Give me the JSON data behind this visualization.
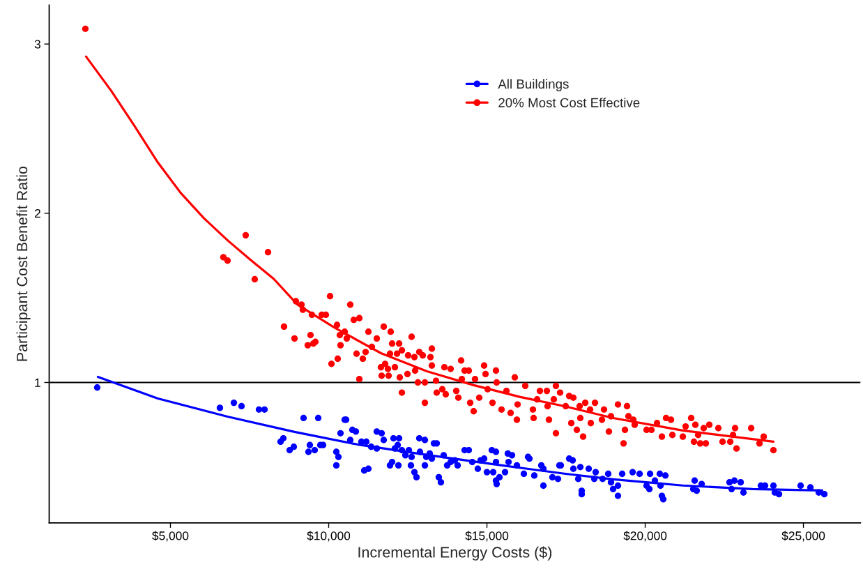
{
  "chart_data": {
    "type": "scatter",
    "xlabel": "Incremental Energy Costs ($)",
    "ylabel": "Participant Cost Benefit Ratio",
    "xlim": [
      1170,
      26800
    ],
    "ylim": [
      0.17,
      3.23
    ],
    "xticks": [
      {
        "value": 5000,
        "label": "$5,000"
      },
      {
        "value": 10000,
        "label": "$10,000"
      },
      {
        "value": 15000,
        "label": "$15,000"
      },
      {
        "value": 20000,
        "label": "$20,000"
      },
      {
        "value": 25000,
        "label": "$25,000"
      }
    ],
    "yticks": [
      1,
      2,
      3
    ],
    "grid": false,
    "legend": "top",
    "ref_lines": [
      {
        "axis": "y",
        "value": 1,
        "color": "#000000"
      }
    ],
    "series": [
      {
        "name": "All Buildings",
        "marker": "circle",
        "color": "#0000ff",
        "x": [
          2687,
          6564,
          7005,
          7247,
          7798,
          7974,
          8480,
          8568,
          8767,
          8899,
          9207,
          9361,
          9405,
          9559,
          9670,
          9736,
          9824,
          10242,
          10242,
          10308,
          10374,
          10506,
          10550,
          10682,
          10749,
          10859,
          11035,
          11189,
          11123,
          11255,
          11343,
          11520,
          11520,
          11674,
          11740,
          11938,
          12004,
          12048,
          12092,
          12181,
          12225,
          12203,
          12313,
          12423,
          12533,
          12599,
          12621,
          12709,
          12775,
          12863,
          12885,
          13040,
          13040,
          13084,
          13194,
          13260,
          13326,
          13414,
          13480,
          13546,
          13634,
          13744,
          13854,
          13986,
          14075,
          14295,
          14427,
          14537,
          14713,
          14801,
          14912,
          15000,
          15154,
          15286,
          15198,
          15286,
          15286,
          15308,
          15396,
          15572,
          15661,
          15793,
          15683,
          15947,
          16167,
          16299,
          16343,
          16497,
          16718,
          16784,
          17070,
          17290,
          17599,
          17709,
          16784,
          17246,
          17334,
          17731,
          17951,
          17885,
          17995,
          17995,
          18216,
          18436,
          18392,
          18656,
          18832,
          18920,
          18986,
          19140,
          19140,
          19273,
          19603,
          19824,
          20044,
          20132,
          20154,
          20308,
          20462,
          20484,
          20528,
          20572,
          20638,
          21563,
          21519,
          21629,
          21784,
          22665,
          22731,
          22819,
          23017,
          23105,
          23656,
          23788,
          24052,
          24096,
          24228,
          24911,
          25220,
          25484,
          25660
        ],
        "values": [
          0.97,
          0.85,
          0.88,
          0.86,
          0.84,
          0.84,
          0.65,
          0.67,
          0.6,
          0.62,
          0.79,
          0.59,
          0.63,
          0.6,
          0.79,
          0.63,
          0.63,
          0.59,
          0.51,
          0.56,
          0.7,
          0.78,
          0.78,
          0.66,
          0.72,
          0.71,
          0.65,
          0.65,
          0.48,
          0.49,
          0.62,
          0.61,
          0.71,
          0.7,
          0.66,
          0.51,
          0.53,
          0.67,
          0.61,
          0.63,
          0.67,
          0.51,
          0.6,
          0.57,
          0.6,
          0.51,
          0.56,
          0.47,
          0.44,
          0.67,
          0.59,
          0.66,
          0.51,
          0.56,
          0.58,
          0.55,
          0.64,
          0.64,
          0.44,
          0.41,
          0.57,
          0.51,
          0.53,
          0.54,
          0.51,
          0.6,
          0.6,
          0.53,
          0.49,
          0.54,
          0.55,
          0.47,
          0.6,
          0.59,
          0.47,
          0.53,
          0.42,
          0.4,
          0.44,
          0.47,
          0.58,
          0.57,
          0.53,
          0.51,
          0.46,
          0.56,
          0.55,
          0.45,
          0.51,
          0.39,
          0.44,
          0.51,
          0.55,
          0.54,
          0.49,
          0.43,
          0.51,
          0.49,
          0.5,
          0.43,
          0.36,
          0.34,
          0.49,
          0.47,
          0.43,
          0.43,
          0.46,
          0.41,
          0.37,
          0.39,
          0.33,
          0.46,
          0.47,
          0.46,
          0.39,
          0.37,
          0.46,
          0.42,
          0.46,
          0.39,
          0.33,
          0.31,
          0.45,
          0.42,
          0.37,
          0.36,
          0.4,
          0.41,
          0.37,
          0.42,
          0.41,
          0.35,
          0.39,
          0.39,
          0.39,
          0.35,
          0.34,
          0.39,
          0.38,
          0.35,
          0.34
        ]
      },
      {
        "type": "line",
        "marker": "none",
        "color": "#0000ff",
        "x": [
          2709,
          4604,
          6806,
          8921,
          10903,
          13106,
          15308,
          17445,
          18987,
          21189,
          23392,
          25594
        ],
        "values": [
          1.033,
          0.905,
          0.798,
          0.708,
          0.634,
          0.572,
          0.514,
          0.461,
          0.428,
          0.391,
          0.37,
          0.362
        ]
      },
      {
        "name": "20% Most Cost Effective",
        "marker": "circle",
        "color": "#ff0000",
        "x": [
          2313,
          6674,
          6806,
          7379,
          7665,
          8084,
          8590,
          8921,
          8965,
          9141,
          9185,
          9339,
          9427,
          9471,
          9515,
          9581,
          9780,
          9912,
          10044,
          10088,
          10264,
          10286,
          10352,
          10374,
          10506,
          10572,
          10682,
          10793,
          10881,
          10969,
          10969,
          11079,
          11167,
          11255,
          11365,
          11520,
          11652,
          11674,
          11740,
          11784,
          11872,
          11894,
          11938,
          11960,
          12004,
          12092,
          12159,
          12225,
          12247,
          12313,
          12313,
          12489,
          12511,
          12621,
          12709,
          12731,
          12819,
          12863,
          12973,
          13040,
          13040,
          13216,
          13260,
          13260,
          13392,
          13414,
          13590,
          13656,
          13700,
          13854,
          14031,
          14097,
          14185,
          14207,
          14295,
          14427,
          14471,
          14581,
          14625,
          14757,
          14912,
          14956,
          15022,
          15176,
          15286,
          15308,
          15462,
          15617,
          15749,
          15881,
          15947,
          15969,
          16211,
          16453,
          16475,
          16586,
          16674,
          16894,
          16916,
          16960,
          17114,
          17180,
          17180,
          17312,
          17599,
          17731,
          17489,
          17665,
          17841,
          17929,
          17951,
          18039,
          18106,
          18260,
          18282,
          18414,
          18634,
          18700,
          18854,
          18920,
          19140,
          19317,
          19361,
          19427,
          19471,
          19625,
          19669,
          20044,
          20198,
          20374,
          20528,
          20660,
          20815,
          20859,
          21189,
          21277,
          21453,
          21541,
          21585,
          21673,
          21739,
          21916,
          21850,
          22026,
          22312,
          22444,
          22687,
          22775,
          22841,
          22885,
          23348,
          23612,
          23744,
          24052
        ],
        "values": [
          3.09,
          1.74,
          1.72,
          1.87,
          1.61,
          1.77,
          1.33,
          1.26,
          1.48,
          1.46,
          1.43,
          1.22,
          1.28,
          1.4,
          1.23,
          1.24,
          1.4,
          1.4,
          1.51,
          1.11,
          1.34,
          1.14,
          1.28,
          1.22,
          1.3,
          1.26,
          1.46,
          1.37,
          1.17,
          1.38,
          1.02,
          1.14,
          1.18,
          1.3,
          1.21,
          1.26,
          1.09,
          1.04,
          1.33,
          1.11,
          1.08,
          1.04,
          1.17,
          1.3,
          1.23,
          1.09,
          1.17,
          1.23,
          1.03,
          1.19,
          0.94,
          1.05,
          1.16,
          1.27,
          1.15,
          1.07,
          1.0,
          1.18,
          1.16,
          0.88,
          1.0,
          1.15,
          1.2,
          1.1,
          1.01,
          0.94,
          0.96,
          1.09,
          0.93,
          1.08,
          0.95,
          0.91,
          1.13,
          1.02,
          1.07,
          1.07,
          0.88,
          0.83,
          1.02,
          0.91,
          1.1,
          1.05,
          0.96,
          0.88,
          1.07,
          1.0,
          0.84,
          0.95,
          0.82,
          1.03,
          0.78,
          0.87,
          0.98,
          0.84,
          0.79,
          0.9,
          0.95,
          0.95,
          0.86,
          0.78,
          0.9,
          0.98,
          0.7,
          0.94,
          0.92,
          0.91,
          0.86,
          0.76,
          0.72,
          0.86,
          0.79,
          0.68,
          0.88,
          0.84,
          0.76,
          0.88,
          0.78,
          0.84,
          0.71,
          0.8,
          0.87,
          0.64,
          0.72,
          0.86,
          0.8,
          0.78,
          0.75,
          0.72,
          0.72,
          0.76,
          0.68,
          0.79,
          0.78,
          0.69,
          0.68,
          0.74,
          0.79,
          0.65,
          0.75,
          0.69,
          0.64,
          0.64,
          0.73,
          0.75,
          0.73,
          0.65,
          0.65,
          0.69,
          0.73,
          0.61,
          0.73,
          0.64,
          0.68,
          0.6
        ]
      },
      {
        "type": "line",
        "marker": "none",
        "color": "#ff0000",
        "x": [
          2335,
          3128,
          3855,
          4604,
          5330,
          6057,
          6806,
          7533,
          8260,
          9009,
          10176,
          11652,
          13106,
          14581,
          16057,
          17445,
          18987,
          21189,
          24052
        ],
        "values": [
          2.926,
          2.724,
          2.519,
          2.3,
          2.119,
          1.971,
          1.84,
          1.724,
          1.613,
          1.461,
          1.325,
          1.173,
          1.066,
          0.984,
          0.914,
          0.86,
          0.79,
          0.716,
          0.65
        ]
      }
    ]
  }
}
